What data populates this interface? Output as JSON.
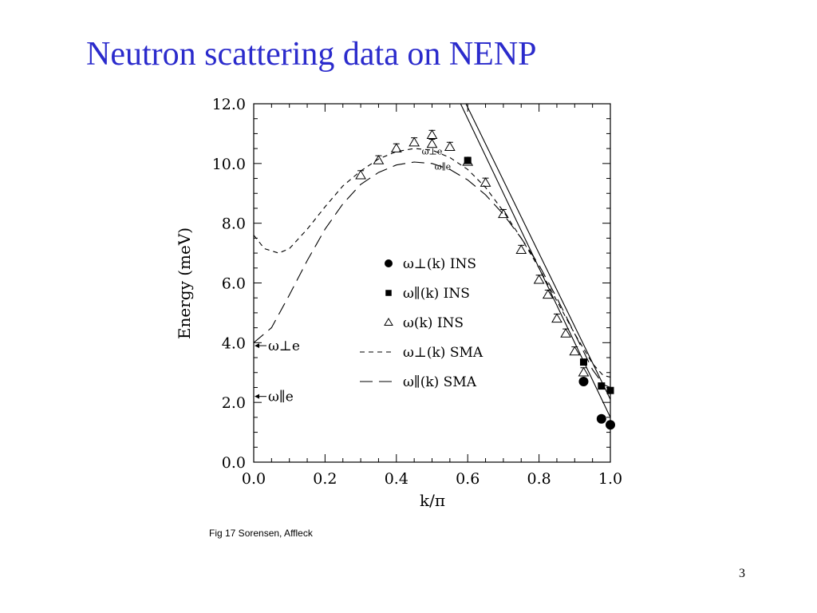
{
  "slide": {
    "title": "Neutron scattering data on NENP",
    "caption": "Fig 17 Sorensen, Affleck",
    "page_number": "3"
  },
  "chart_data": {
    "type": "scatter",
    "xlabel": "k/π",
    "ylabel": "Energy (meV)",
    "xlim": [
      0.0,
      1.0
    ],
    "ylim": [
      0.0,
      12.0
    ],
    "xticks": [
      "0.0",
      "0.2",
      "0.4",
      "0.6",
      "0.8",
      "1.0"
    ],
    "yticks": [
      "0.0",
      "2.0",
      "4.0",
      "6.0",
      "8.0",
      "10.0",
      "12.0"
    ],
    "legend_position": "center-right",
    "legend": [
      {
        "marker": "filled-circle",
        "label": "ω⊥(k)  INS"
      },
      {
        "marker": "filled-square",
        "label": "ω∥(k)  INS"
      },
      {
        "marker": "open-triangle",
        "label": "ω(k)  INS"
      },
      {
        "marker": "short-dash",
        "label": "ω⊥(k)  SMA"
      },
      {
        "marker": "long-dash",
        "label": "ω∥(k)  SMA"
      }
    ],
    "annotations": [
      {
        "text": "ω⊥e",
        "note": "arrow at left axis",
        "y": 3.9
      },
      {
        "text": "ω∥e",
        "note": "arrow at left axis",
        "y": 2.2
      },
      {
        "text": "ω⊥e",
        "note": "label near peak",
        "x": 0.5,
        "y": 10.3
      },
      {
        "text": "ω∥e",
        "note": "label near peak",
        "x": 0.53,
        "y": 9.8
      }
    ],
    "series": [
      {
        "name": "ω⊥(k) INS",
        "marker": "filled-circle",
        "points": [
          [
            0.925,
            2.7
          ],
          [
            0.975,
            1.45
          ],
          [
            1.0,
            1.25
          ]
        ]
      },
      {
        "name": "ω∥(k) INS",
        "marker": "filled-square",
        "points": [
          [
            0.6,
            10.1
          ],
          [
            0.925,
            3.35
          ],
          [
            0.975,
            2.55
          ],
          [
            1.0,
            2.4
          ]
        ]
      },
      {
        "name": "ω(k) INS",
        "marker": "open-triangle",
        "points": [
          [
            0.3,
            9.6
          ],
          [
            0.35,
            10.1
          ],
          [
            0.4,
            10.5
          ],
          [
            0.45,
            10.7
          ],
          [
            0.5,
            10.95
          ],
          [
            0.5,
            10.65
          ],
          [
            0.55,
            10.55
          ],
          [
            0.6,
            10.05
          ],
          [
            0.65,
            9.35
          ],
          [
            0.7,
            8.3
          ],
          [
            0.75,
            7.1
          ],
          [
            0.8,
            6.1
          ],
          [
            0.825,
            5.6
          ],
          [
            0.85,
            4.8
          ],
          [
            0.875,
            4.3
          ],
          [
            0.9,
            3.7
          ],
          [
            0.925,
            3.0
          ]
        ]
      },
      {
        "name": "ω⊥(k) SMA",
        "style": "short-dash",
        "points": [
          [
            0.0,
            7.6
          ],
          [
            0.03,
            7.15
          ],
          [
            0.07,
            7.0
          ],
          [
            0.1,
            7.15
          ],
          [
            0.15,
            7.8
          ],
          [
            0.2,
            8.55
          ],
          [
            0.25,
            9.25
          ],
          [
            0.3,
            9.75
          ],
          [
            0.35,
            10.15
          ],
          [
            0.4,
            10.4
          ],
          [
            0.45,
            10.5
          ],
          [
            0.5,
            10.45
          ],
          [
            0.55,
            10.2
          ],
          [
            0.6,
            9.8
          ],
          [
            0.65,
            9.2
          ],
          [
            0.7,
            8.4
          ],
          [
            0.75,
            7.5
          ],
          [
            0.8,
            6.5
          ],
          [
            0.85,
            5.4
          ],
          [
            0.9,
            4.3
          ],
          [
            0.95,
            3.3
          ],
          [
            0.98,
            2.9
          ],
          [
            1.0,
            2.85
          ]
        ]
      },
      {
        "name": "ω∥(k) SMA",
        "style": "long-dash",
        "points": [
          [
            0.0,
            4.0
          ],
          [
            0.05,
            4.5
          ],
          [
            0.1,
            5.6
          ],
          [
            0.15,
            6.75
          ],
          [
            0.2,
            7.8
          ],
          [
            0.25,
            8.65
          ],
          [
            0.3,
            9.3
          ],
          [
            0.35,
            9.7
          ],
          [
            0.4,
            9.95
          ],
          [
            0.45,
            10.05
          ],
          [
            0.5,
            10.0
          ],
          [
            0.55,
            9.8
          ],
          [
            0.6,
            9.45
          ],
          [
            0.65,
            8.95
          ],
          [
            0.7,
            8.3
          ],
          [
            0.75,
            7.5
          ],
          [
            0.8,
            6.6
          ],
          [
            0.85,
            5.5
          ],
          [
            0.9,
            4.3
          ],
          [
            0.95,
            3.1
          ],
          [
            0.98,
            2.6
          ],
          [
            1.0,
            2.5
          ]
        ]
      },
      {
        "name": "",
        "style": "solid",
        "points": [
          [
            0.58,
            12.0
          ],
          [
            1.0,
            1.5
          ]
        ]
      },
      {
        "name": "",
        "style": "solid",
        "points": [
          [
            0.595,
            12.0
          ],
          [
            1.0,
            2.1
          ]
        ]
      }
    ]
  }
}
